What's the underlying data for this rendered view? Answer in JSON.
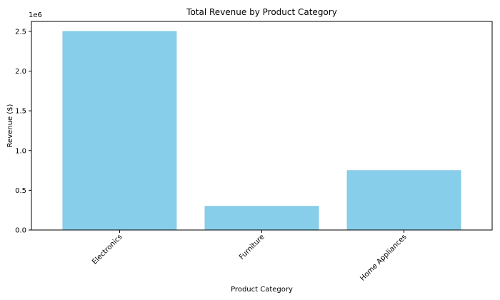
{
  "chart_data": {
    "type": "bar",
    "title": "Total Revenue by Product Category",
    "xlabel": "Product Category",
    "ylabel": "Revenue ($)",
    "categories": [
      "Electronics",
      "Furniture",
      "Home Appliances"
    ],
    "values": [
      2500000,
      300000,
      750000
    ],
    "ylim": [
      0,
      2625000
    ],
    "y_ticks": [
      0,
      500000,
      1000000,
      1500000,
      2000000,
      2500000
    ],
    "y_tick_labels": [
      "0.0",
      "0.5",
      "1.0",
      "1.5",
      "2.0",
      "2.5"
    ],
    "y_offset_label": "1e6",
    "x_tick_rotation_deg": 45,
    "grid": false,
    "legend": "none",
    "bar_color": "#87CEEB",
    "bar_edge_color": "#7cc3e0"
  }
}
